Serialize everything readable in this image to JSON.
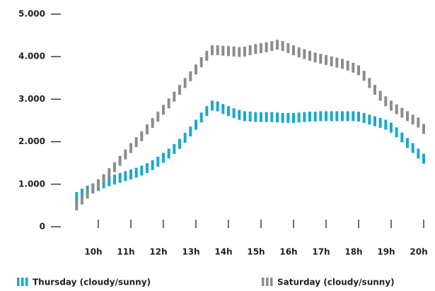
{
  "chart_data": {
    "type": "line",
    "x": [
      560,
      570,
      580,
      590,
      600,
      610,
      620,
      630,
      640,
      650,
      660,
      670,
      680,
      690,
      700,
      710,
      720,
      730,
      740,
      750,
      760,
      770,
      780,
      790,
      800,
      810,
      820,
      830,
      840,
      850,
      860,
      870,
      880,
      890,
      900,
      910,
      920,
      930,
      940,
      950,
      960,
      970,
      980,
      990,
      1000,
      1010,
      1020,
      1030,
      1040,
      1050,
      1060,
      1070,
      1080,
      1090,
      1100,
      1110,
      1120,
      1130,
      1140,
      1150,
      1160,
      1170,
      1180,
      1190,
      1200
    ],
    "series": [
      {
        "name": "Thursday (cloudy/sunny)",
        "color": "#19a9c9",
        "values": [
          700,
          780,
          850,
          900,
          960,
          1020,
          1070,
          1110,
          1150,
          1190,
          1230,
          1270,
          1320,
          1380,
          1450,
          1530,
          1620,
          1720,
          1830,
          1950,
          2090,
          2240,
          2400,
          2570,
          2720,
          2850,
          2830,
          2770,
          2720,
          2670,
          2630,
          2600,
          2590,
          2580,
          2580,
          2580,
          2580,
          2570,
          2560,
          2560,
          2560,
          2570,
          2580,
          2590,
          2590,
          2600,
          2600,
          2600,
          2600,
          2600,
          2600,
          2600,
          2590,
          2560,
          2520,
          2480,
          2440,
          2400,
          2330,
          2220,
          2100,
          1970,
          1850,
          1720,
          1600
        ]
      },
      {
        "name": "Saturday (cloudy/sunny)",
        "color": "#8c8c8c",
        "values": [
          500,
          640,
          780,
          900,
          1000,
          1120,
          1260,
          1400,
          1550,
          1700,
          1850,
          1990,
          2130,
          2290,
          2440,
          2590,
          2750,
          2900,
          3060,
          3220,
          3380,
          3540,
          3700,
          3870,
          4020,
          4150,
          4150,
          4140,
          4130,
          4120,
          4110,
          4120,
          4150,
          4180,
          4200,
          4220,
          4250,
          4280,
          4250,
          4200,
          4150,
          4100,
          4060,
          4020,
          3980,
          3950,
          3920,
          3890,
          3860,
          3830,
          3790,
          3740,
          3680,
          3550,
          3380,
          3220,
          3080,
          2950,
          2850,
          2760,
          2680,
          2600,
          2520,
          2450,
          2300
        ]
      }
    ],
    "xlim": [
      560,
      1200
    ],
    "xticks": [
      {
        "value": 600,
        "label": "10h"
      },
      {
        "value": 660,
        "label": "11h"
      },
      {
        "value": 720,
        "label": "12h"
      },
      {
        "value": 780,
        "label": "13h"
      },
      {
        "value": 840,
        "label": "14h"
      },
      {
        "value": 900,
        "label": "15h"
      },
      {
        "value": 960,
        "label": "16h"
      },
      {
        "value": 1020,
        "label": "17h"
      },
      {
        "value": 1080,
        "label": "18h"
      },
      {
        "value": 1140,
        "label": "19h"
      },
      {
        "value": 1200,
        "label": "20h"
      }
    ],
    "ylim": [
      0,
      5000
    ],
    "yticks": [
      0,
      {
        "value": 1000,
        "label": "1.000"
      },
      {
        "value": 2000,
        "label": "2.000"
      },
      {
        "value": 3000,
        "label": "3.000"
      },
      {
        "value": 4000,
        "label": "4.000"
      },
      {
        "value": 5000,
        "label": "5.000"
      }
    ]
  }
}
